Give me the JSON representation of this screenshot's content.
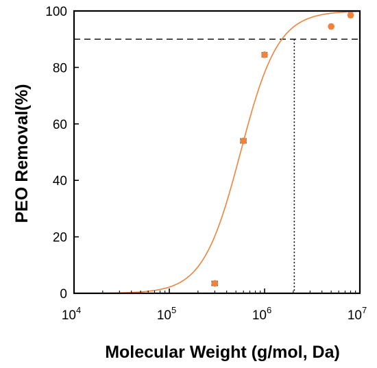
{
  "chart_data": {
    "type": "scatter",
    "xlabel": "Molecular Weight (g/mol, Da)",
    "ylabel": "PEO Removal(%)",
    "xscale": "log",
    "xlim": [
      10000,
      10000000
    ],
    "ylim": [
      0,
      100
    ],
    "x_ticks": [
      {
        "value": 10000,
        "base": "10",
        "exp": "4"
      },
      {
        "value": 100000,
        "base": "10",
        "exp": "5"
      },
      {
        "value": 1000000,
        "base": "10",
        "exp": "6"
      },
      {
        "value": 10000000,
        "base": "10",
        "exp": "7"
      }
    ],
    "y_ticks": [
      0,
      20,
      40,
      60,
      80,
      100
    ],
    "grid": false,
    "colors": {
      "series": "#f0823c",
      "reference": "#000000"
    },
    "series": [
      {
        "points": [
          {
            "x": 300000,
            "y": 3.5,
            "xerr": 20000
          },
          {
            "x": 600000,
            "y": 54,
            "xerr": 40000
          },
          {
            "x": 1000000,
            "y": 84.5,
            "xerr": 60000
          },
          {
            "x": 5000000,
            "y": 94.5,
            "xerr": 200000
          },
          {
            "x": 8000000,
            "y": 98.5,
            "xerr": 350000
          }
        ]
      }
    ],
    "fit_curve": {
      "type": "sigmoid-log",
      "x_start": 20000,
      "x_end": 10000000,
      "midpoint": 560000,
      "slope": 2.2
    },
    "reference_lines": {
      "y": 90,
      "x": 2050000
    }
  }
}
